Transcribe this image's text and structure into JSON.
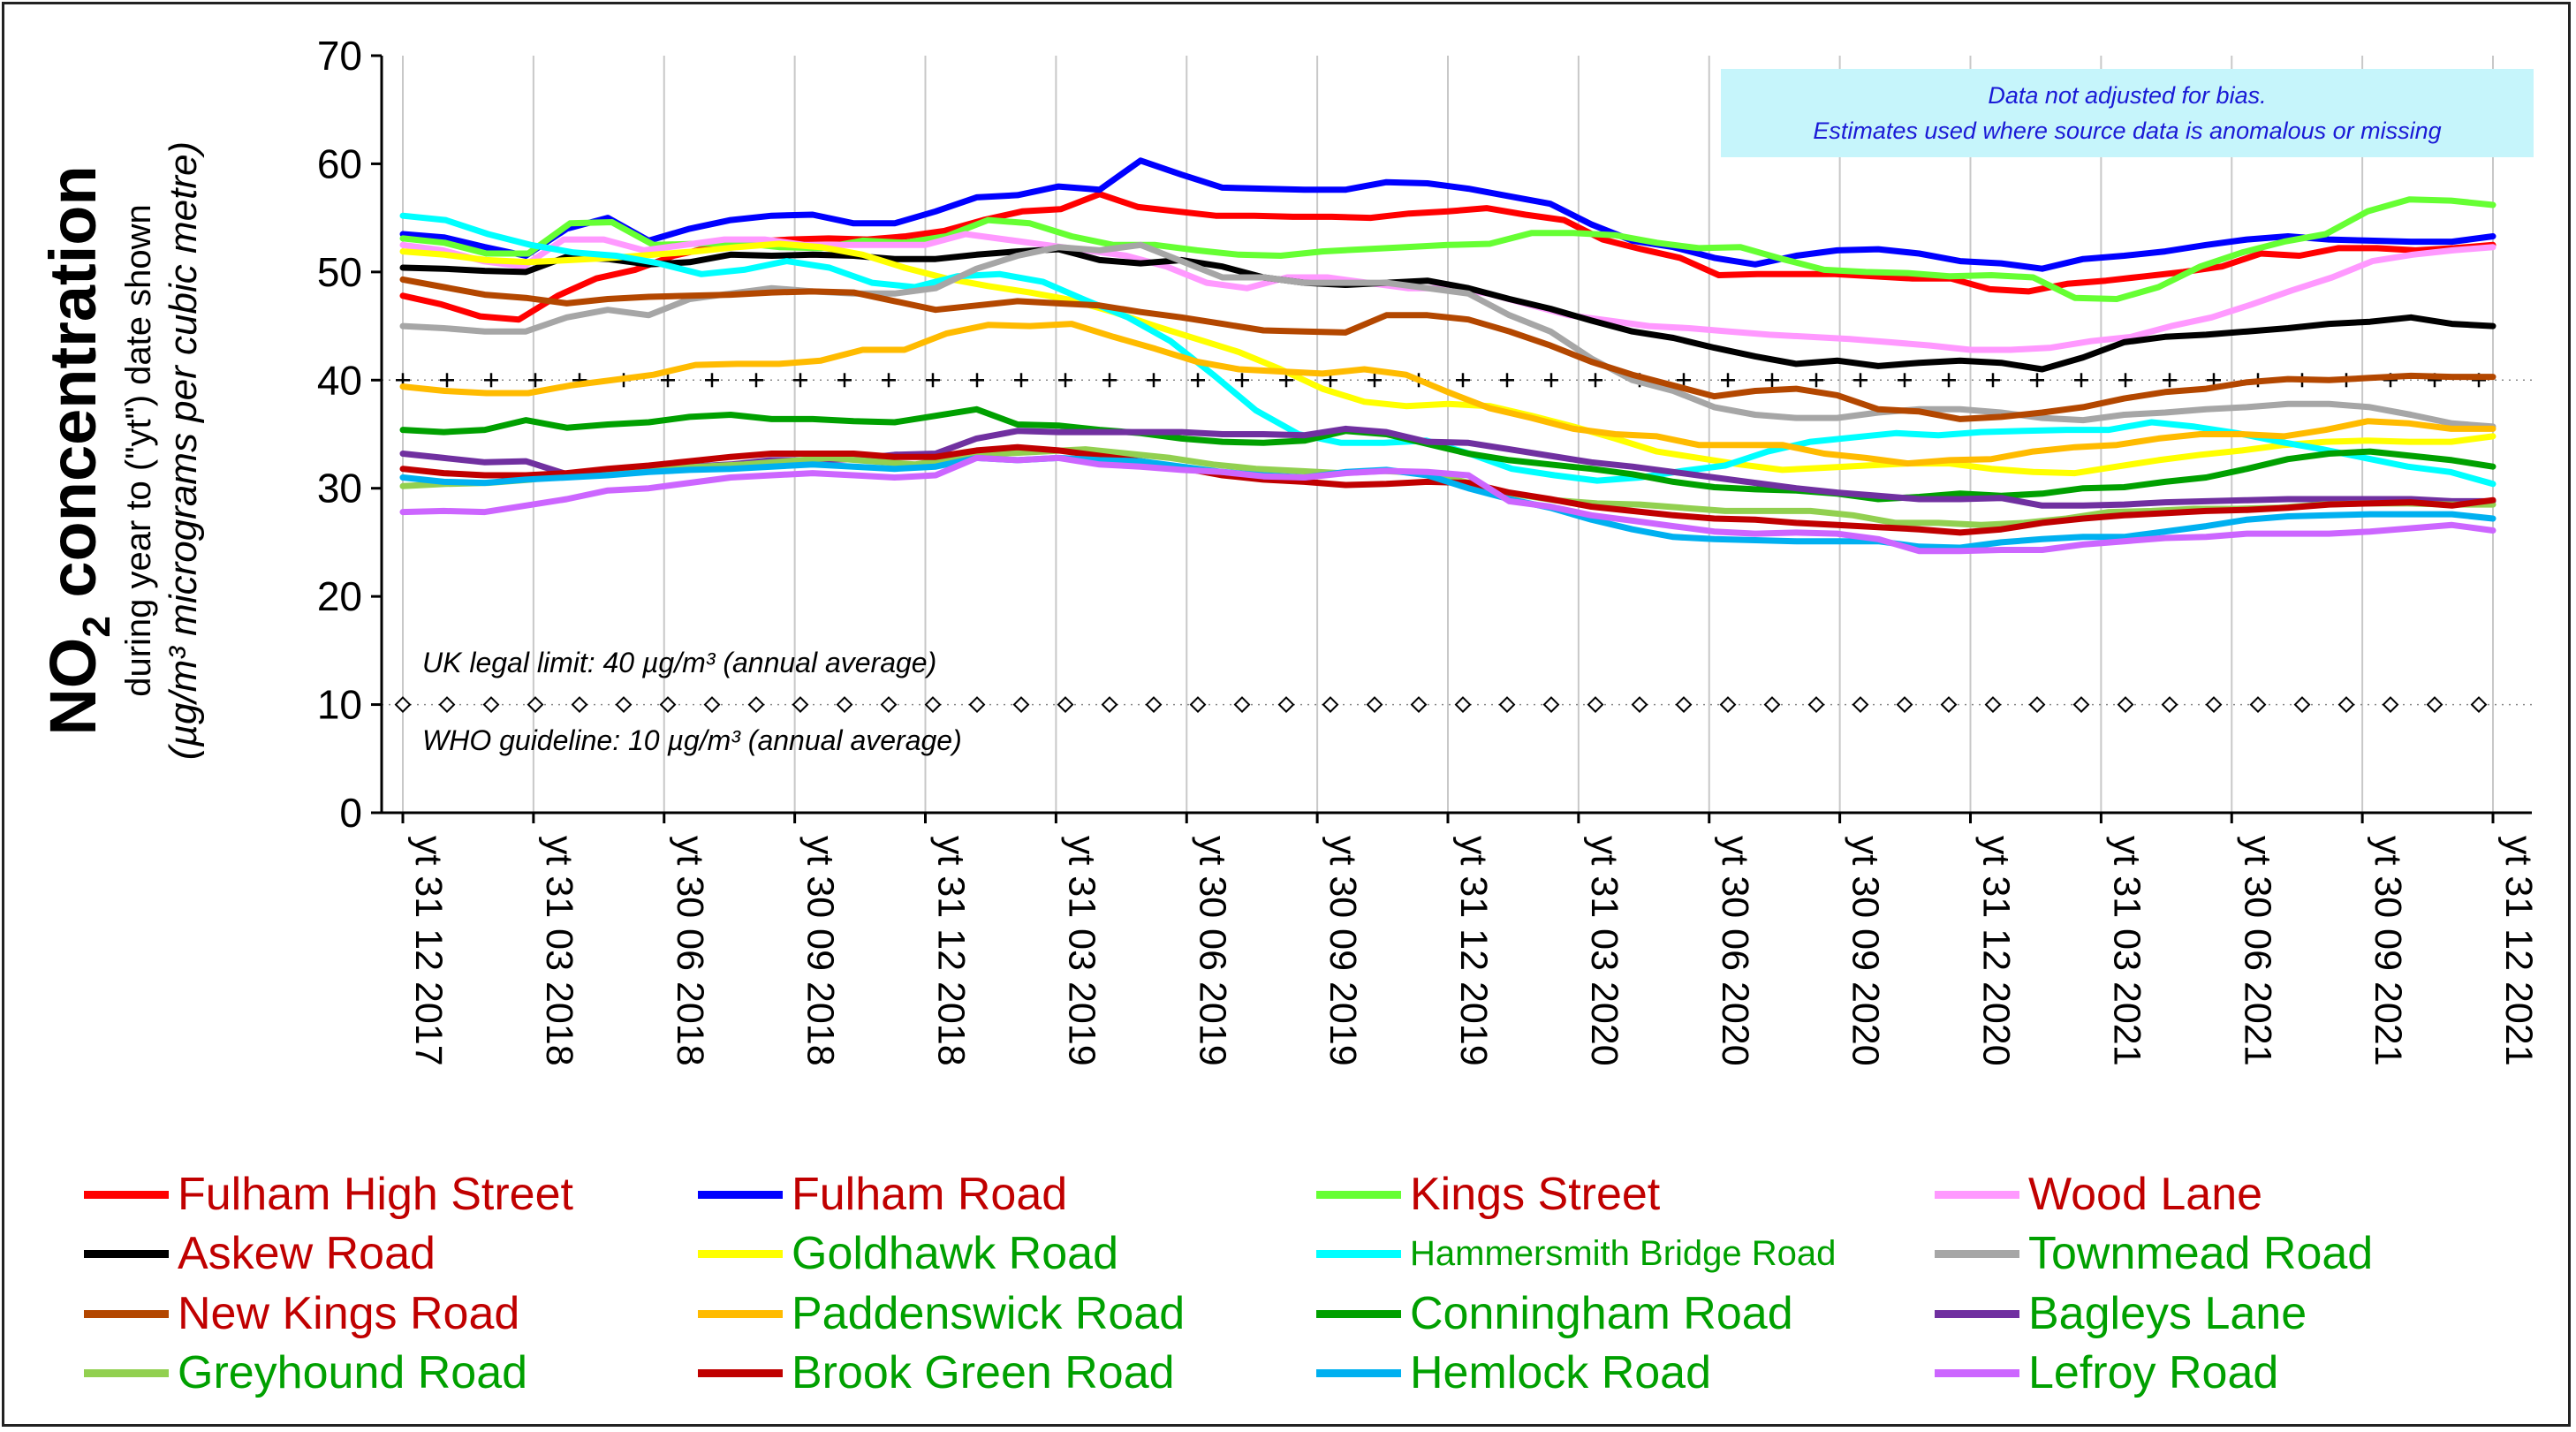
{
  "note": {
    "line1": "Data not adjusted for bias.",
    "line2": "Estimates used where source data is anomalous or missing"
  },
  "reference_lines": {
    "uk_limit_label": "UK legal limit: 40 µg/m³ (annual average)",
    "who_label": "WHO guideline: 10 µg/m³ (annual average)",
    "uk_limit_value": 40,
    "who_value": 10
  },
  "axis": {
    "ylabel_main": "NO",
    "ylabel_sub": "2",
    "ylabel_main2": " concentration",
    "ylabel_line2": "during year to (\"yt\") date shown",
    "ylabel_line3": "(µg/m³ micrograms per cubic metre)"
  },
  "chart_data": {
    "type": "line",
    "ylim": [
      0,
      70
    ],
    "yticks": [
      0,
      10,
      20,
      30,
      40,
      50,
      60,
      70
    ],
    "x_tick_labels": [
      "yt 31 12 2017",
      "yt 31 03 2018",
      "yt 30 06 2018",
      "yt 30 09 2018",
      "yt 31 12 2018",
      "yt 31 03 2019",
      "yt 30 06 2019",
      "yt 30 09 2019",
      "yt 31 12 2019",
      "yt 31 03 2020",
      "yt 30 06 2020",
      "yt 30 09 2020",
      "yt 31 12 2020",
      "yt 31 03 2021",
      "yt 30 06 2021",
      "yt 30 09 2021",
      "yt 31 12 2021"
    ],
    "grid": "vertical",
    "legend_position": "bottom",
    "series": [
      {
        "name": "Fulham High Street",
        "line_color": "#ff0000",
        "text_color": "#c00000",
        "values": [
          47.8,
          47.0,
          45.9,
          45.6,
          47.8,
          49.4,
          50.2,
          51.5,
          52.3,
          52.8,
          53.0,
          53.1,
          53.0,
          53.3,
          53.8,
          54.8,
          55.6,
          55.8,
          57.2,
          56.0,
          55.6,
          55.2,
          55.2,
          55.1,
          55.1,
          55.0,
          55.4,
          55.6,
          55.9,
          55.3,
          54.8,
          53.0,
          52.1,
          51.3,
          49.7,
          49.8,
          49.8,
          49.8,
          49.6,
          49.4,
          49.4,
          48.4,
          48.2,
          48.9,
          49.2,
          49.6,
          50.0,
          50.5,
          51.7,
          51.5,
          52.2,
          52.2,
          52.0,
          52.2,
          52.5
        ]
      },
      {
        "name": "Fulham Road",
        "line_color": "#0000ff",
        "text_color": "#c00000",
        "values": [
          53.5,
          53.2,
          52.3,
          51.5,
          54.0,
          55.0,
          52.9,
          54.0,
          54.8,
          55.2,
          55.3,
          54.5,
          54.5,
          55.6,
          56.9,
          57.1,
          57.9,
          57.6,
          60.3,
          59.0,
          57.8,
          57.7,
          57.6,
          57.6,
          58.3,
          58.2,
          57.7,
          57.0,
          56.3,
          54.4,
          52.9,
          52.3,
          51.3,
          50.7,
          51.5,
          52.0,
          52.1,
          51.7,
          51.0,
          50.8,
          50.3,
          51.2,
          51.5,
          51.9,
          52.5,
          53.0,
          53.3,
          53.0,
          52.9,
          52.8,
          52.8,
          53.3
        ]
      },
      {
        "name": "Kings Street",
        "line_color": "#66ff33",
        "text_color": "#c00000",
        "values": [
          53.1,
          52.7,
          51.7,
          51.7,
          54.5,
          54.6,
          52.5,
          52.6,
          52.7,
          52.3,
          52.2,
          52.9,
          52.7,
          53.3,
          54.8,
          54.5,
          53.3,
          52.5,
          52.5,
          52.0,
          51.6,
          51.5,
          51.9,
          52.1,
          52.3,
          52.5,
          52.6,
          53.6,
          53.6,
          53.4,
          52.7,
          52.2,
          52.3,
          51.2,
          50.2,
          50.0,
          49.9,
          49.6,
          49.7,
          49.5,
          47.6,
          47.5,
          48.6,
          50.5,
          51.8,
          52.8,
          53.5,
          55.6,
          56.7,
          56.6,
          56.2
        ]
      },
      {
        "name": "Wood Lane",
        "line_color": "#ff99ff",
        "text_color": "#c00000",
        "values": [
          52.5,
          52.0,
          51.0,
          50.5,
          53.0,
          53.0,
          52.0,
          52.5,
          53.0,
          53.0,
          52.5,
          52.5,
          52.5,
          52.5,
          53.5,
          53.0,
          52.5,
          52.0,
          51.5,
          50.5,
          49.0,
          48.5,
          49.5,
          49.5,
          49.0,
          48.5,
          48.5,
          48.0,
          47.0,
          46.0,
          45.5,
          45.0,
          44.8,
          44.5,
          44.2,
          44.0,
          43.8,
          43.5,
          43.2,
          42.8,
          42.8,
          43.0,
          43.6,
          44.0,
          45.0,
          45.8,
          47.0,
          48.3,
          49.5,
          51.0,
          51.6,
          52.0,
          52.3
        ]
      },
      {
        "name": "Askew Road",
        "line_color": "#000000",
        "text_color": "#c00000",
        "values": [
          50.4,
          50.3,
          50.1,
          50.0,
          51.4,
          51.2,
          50.7,
          50.9,
          51.6,
          51.5,
          51.6,
          51.5,
          51.2,
          51.2,
          51.6,
          51.9,
          52.1,
          51.1,
          50.8,
          51.1,
          50.5,
          49.5,
          49.0,
          48.8,
          49.0,
          49.2,
          48.5,
          47.5,
          46.6,
          45.5,
          44.5,
          43.9,
          43.0,
          42.2,
          41.5,
          41.8,
          41.3,
          41.6,
          41.8,
          41.6,
          41.0,
          42.1,
          43.5,
          44.0,
          44.2,
          44.5,
          44.8,
          45.2,
          45.4,
          45.8,
          45.2,
          45.0
        ]
      },
      {
        "name": "Goldhawk Road",
        "line_color": "#ffff00",
        "text_color": "#00a000",
        "values": [
          51.9,
          51.6,
          51.1,
          50.9,
          51.1,
          51.3,
          51.6,
          51.9,
          52.3,
          52.6,
          52.3,
          51.6,
          50.4,
          49.4,
          48.7,
          48.1,
          47.4,
          46.3,
          45.0,
          43.8,
          42.6,
          41.0,
          39.2,
          38.0,
          37.6,
          37.8,
          37.6,
          36.7,
          35.7,
          34.6,
          33.4,
          32.8,
          32.2,
          31.7,
          31.9,
          32.1,
          32.3,
          32.3,
          31.8,
          31.5,
          31.4,
          32.0,
          32.6,
          33.1,
          33.5,
          34.0,
          34.3,
          34.4,
          34.3,
          34.3,
          34.8
        ]
      },
      {
        "name": "Hammersmith Bridge Road",
        "line_color": "#00ffff",
        "text_color": "#00a000",
        "values": [
          55.2,
          54.8,
          53.5,
          52.5,
          51.8,
          51.5,
          50.8,
          49.8,
          50.2,
          51.0,
          50.4,
          49.0,
          48.6,
          49.6,
          49.8,
          49.1,
          47.4,
          45.8,
          43.6,
          40.5,
          37.2,
          35.0,
          34.2,
          34.2,
          34.4,
          33.2,
          31.8,
          31.2,
          30.7,
          31.0,
          31.6,
          32.1,
          33.4,
          34.3,
          34.7,
          35.1,
          34.9,
          35.2,
          35.3,
          35.4,
          35.4,
          36.1,
          35.7,
          35.1,
          34.3,
          33.6,
          32.8,
          32.0,
          31.5,
          30.4
        ]
      },
      {
        "name": "Townmead Road",
        "line_color": "#a6a6a6",
        "text_color": "#00a000",
        "values": [
          45.0,
          44.8,
          44.5,
          44.5,
          45.8,
          46.5,
          46.0,
          47.5,
          48.0,
          48.5,
          48.2,
          48.0,
          48.0,
          48.5,
          50.3,
          51.5,
          52.3,
          52.0,
          52.5,
          51.0,
          49.5,
          49.5,
          49.0,
          49.0,
          49.0,
          48.5,
          48.0,
          46.0,
          44.5,
          42.0,
          40.0,
          39.0,
          37.5,
          36.8,
          36.5,
          36.5,
          37.0,
          37.3,
          37.3,
          37.0,
          36.5,
          36.3,
          36.8,
          37.0,
          37.3,
          37.5,
          37.8,
          37.8,
          37.5,
          36.8,
          36.0,
          35.7
        ]
      },
      {
        "name": "New Kings Road",
        "line_color": "#b34700",
        "text_color": "#c00000",
        "values": [
          49.3,
          48.6,
          47.9,
          47.6,
          47.1,
          47.5,
          47.7,
          47.8,
          47.9,
          48.1,
          48.2,
          48.1,
          47.3,
          46.5,
          46.9,
          47.3,
          47.1,
          46.9,
          46.3,
          45.8,
          45.2,
          44.6,
          44.5,
          44.4,
          46.0,
          46.0,
          45.6,
          44.5,
          43.2,
          41.7,
          40.5,
          39.5,
          38.5,
          39.0,
          39.2,
          38.6,
          37.3,
          37.1,
          36.4,
          36.6,
          37.0,
          37.5,
          38.3,
          38.9,
          39.2,
          39.8,
          40.1,
          40.0,
          40.2,
          40.4,
          40.3,
          40.3
        ]
      },
      {
        "name": "Paddenswick Road",
        "line_color": "#ffbb00",
        "text_color": "#00a000",
        "values": [
          39.4,
          39.0,
          38.8,
          38.8,
          39.5,
          40.0,
          40.5,
          41.4,
          41.5,
          41.5,
          41.8,
          42.8,
          42.8,
          44.3,
          45.1,
          45.0,
          45.2,
          44.0,
          42.9,
          41.7,
          41.0,
          40.8,
          40.6,
          41.0,
          40.5,
          38.9,
          37.4,
          36.5,
          35.5,
          35.0,
          34.8,
          34.0,
          34.0,
          34.0,
          33.2,
          32.8,
          32.3,
          32.6,
          32.7,
          33.4,
          33.8,
          34.0,
          34.6,
          35.0,
          35.0,
          34.8,
          35.4,
          36.2,
          36.0,
          35.5,
          35.5
        ]
      },
      {
        "name": "Conningham Road",
        "line_color": "#00a000",
        "text_color": "#00a000",
        "values": [
          35.4,
          35.2,
          35.4,
          36.3,
          35.6,
          35.9,
          36.1,
          36.6,
          36.8,
          36.4,
          36.4,
          36.2,
          36.1,
          36.7,
          37.3,
          35.9,
          35.8,
          35.4,
          35.1,
          34.6,
          34.3,
          34.2,
          34.4,
          35.3,
          35.0,
          34.1,
          33.2,
          32.6,
          32.2,
          31.8,
          31.3,
          30.6,
          30.1,
          29.9,
          29.8,
          29.5,
          29.0,
          29.2,
          29.5,
          29.3,
          29.5,
          30.0,
          30.1,
          30.6,
          31.0,
          31.8,
          32.7,
          33.2,
          33.4,
          33.0,
          32.6,
          32.0
        ]
      },
      {
        "name": "Bagleys Lane",
        "line_color": "#7030a0",
        "text_color": "#00a000",
        "values": [
          33.2,
          32.8,
          32.4,
          32.5,
          31.3,
          31.3,
          31.8,
          32.0,
          32.2,
          32.6,
          32.6,
          32.7,
          33.1,
          33.2,
          34.6,
          35.3,
          35.2,
          35.2,
          35.2,
          35.2,
          35.0,
          35.0,
          34.9,
          35.5,
          35.2,
          34.3,
          34.2,
          33.6,
          33.0,
          32.4,
          32.0,
          31.5,
          31.0,
          30.5,
          30.0,
          29.6,
          29.3,
          29.0,
          29.0,
          29.1,
          28.4,
          28.4,
          28.5,
          28.7,
          28.8,
          28.9,
          29.0,
          29.0,
          29.0,
          29.0,
          28.8,
          28.8
        ]
      },
      {
        "name": "Greyhound Road",
        "line_color": "#92d050",
        "text_color": "#00a000",
        "values": [
          30.2,
          30.4,
          30.5,
          30.8,
          31.4,
          31.5,
          31.8,
          32.0,
          32.2,
          32.5,
          32.8,
          32.5,
          32.2,
          32.8,
          33.2,
          33.4,
          33.6,
          33.2,
          32.8,
          32.2,
          31.8,
          31.6,
          31.4,
          31.6,
          31.4,
          30.5,
          29.5,
          28.9,
          28.6,
          28.5,
          28.2,
          27.9,
          27.9,
          27.9,
          27.5,
          26.8,
          26.8,
          26.6,
          26.8,
          27.2,
          27.8,
          27.9,
          28.1,
          28.1,
          28.2,
          28.5,
          28.6,
          28.6,
          28.5,
          28.5
        ]
      },
      {
        "name": "Brook Green Road",
        "line_color": "#c00000",
        "text_color": "#00a000",
        "values": [
          31.8,
          31.4,
          31.2,
          31.2,
          31.4,
          31.8,
          32.1,
          32.5,
          32.9,
          33.2,
          33.2,
          33.2,
          32.9,
          32.9,
          33.5,
          33.8,
          33.5,
          33.0,
          32.5,
          31.9,
          31.2,
          30.8,
          30.6,
          30.3,
          30.4,
          30.6,
          30.5,
          29.6,
          29.0,
          28.3,
          27.9,
          27.5,
          27.2,
          27.1,
          26.8,
          26.6,
          26.4,
          26.2,
          25.9,
          26.2,
          26.8,
          27.2,
          27.5,
          27.7,
          27.9,
          28.0,
          28.2,
          28.5,
          28.6,
          28.7,
          28.4,
          28.9
        ]
      },
      {
        "name": "Hemlock Road",
        "line_color": "#00b0f0",
        "text_color": "#00a000",
        "values": [
          31.0,
          30.6,
          30.5,
          30.8,
          31.0,
          31.2,
          31.5,
          31.7,
          31.8,
          32.0,
          32.2,
          32.0,
          31.8,
          32.0,
          32.8,
          32.6,
          32.8,
          32.6,
          32.5,
          32.0,
          31.5,
          31.2,
          31.0,
          31.5,
          31.7,
          31.2,
          30.0,
          29.0,
          28.2,
          27.1,
          26.2,
          25.5,
          25.3,
          25.2,
          25.1,
          25.1,
          25.1,
          24.6,
          24.5,
          25.0,
          25.3,
          25.5,
          25.5,
          26.0,
          26.5,
          27.1,
          27.4,
          27.5,
          27.6,
          27.6,
          27.6,
          27.2
        ]
      },
      {
        "name": "Lefroy Road",
        "line_color": "#cc66ff",
        "text_color": "#00a000",
        "values": [
          27.8,
          27.9,
          27.8,
          28.4,
          29.0,
          29.8,
          30.0,
          30.5,
          31.0,
          31.2,
          31.4,
          31.2,
          31.0,
          31.2,
          32.8,
          32.6,
          32.8,
          32.2,
          32.0,
          31.7,
          31.5,
          31.1,
          31.0,
          31.4,
          31.6,
          31.5,
          31.2,
          28.8,
          28.3,
          27.5,
          27.0,
          26.5,
          26.0,
          25.8,
          25.9,
          25.8,
          25.3,
          24.2,
          24.2,
          24.3,
          24.3,
          24.8,
          25.1,
          25.4,
          25.5,
          25.8,
          25.8,
          25.8,
          26.0,
          26.3,
          26.6,
          26.1
        ]
      }
    ]
  }
}
